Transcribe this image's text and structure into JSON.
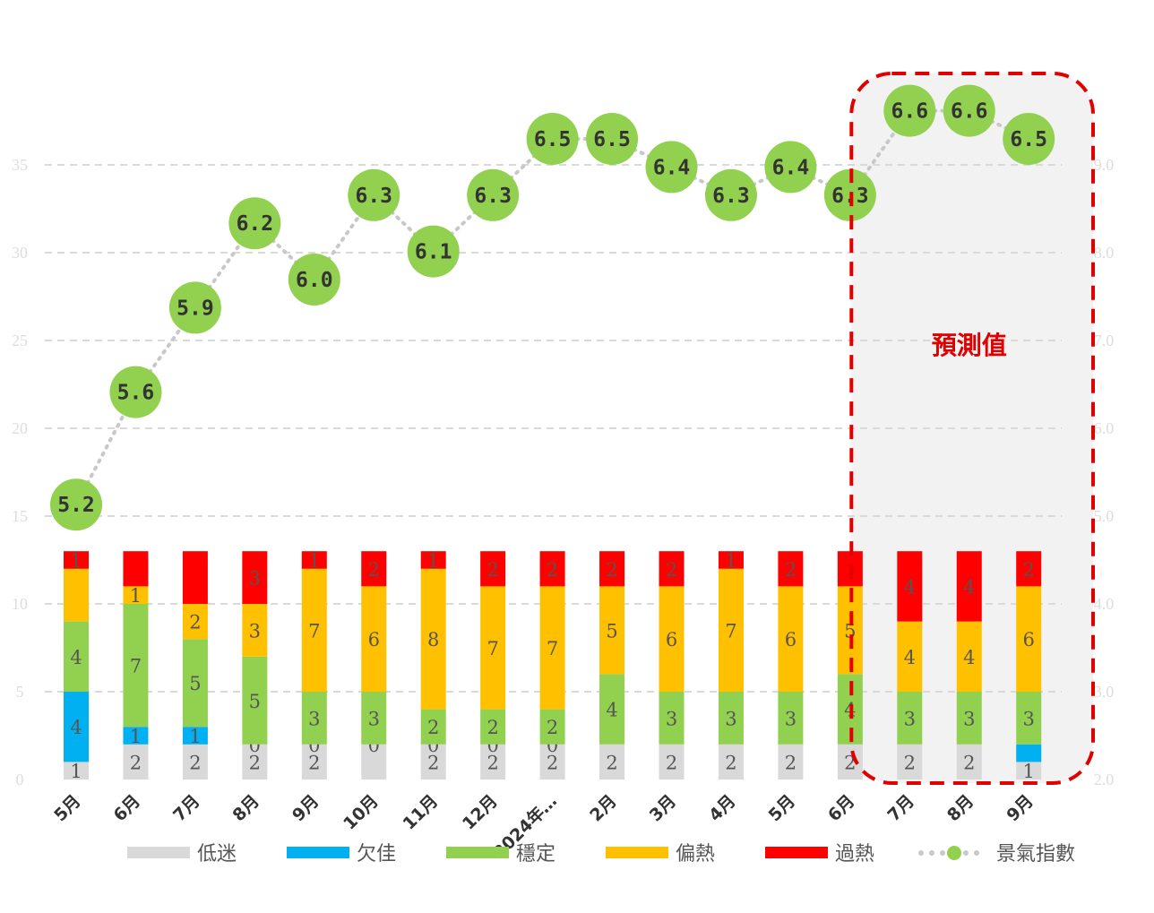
{
  "chart_data": {
    "type": "bar",
    "stacked": true,
    "categories": [
      "5月",
      "6月",
      "7月",
      "8月",
      "9月",
      "10月",
      "11月",
      "12月",
      "2024年…",
      "2月",
      "3月",
      "4月",
      "5月",
      "6月",
      "7月",
      "8月",
      "9月"
    ],
    "series": [
      {
        "name": "低迷",
        "color": "#d9d9d9",
        "values": [
          1,
          2,
          2,
          2,
          2,
          2,
          2,
          2,
          2,
          2,
          2,
          2,
          2,
          2,
          2,
          2,
          1
        ],
        "labels": [
          "1",
          "2",
          "2",
          "2",
          "2",
          "",
          "2",
          "2",
          "2",
          "2",
          "2",
          "2",
          "2",
          "2",
          "2",
          "2",
          "1"
        ]
      },
      {
        "name": "欠佳",
        "color": "#00b0f0",
        "values": [
          4,
          1,
          1,
          0,
          0,
          0,
          0,
          0,
          0,
          0,
          0,
          0,
          0,
          0,
          0,
          0,
          1
        ],
        "labels": [
          "4",
          "1",
          "1",
          "0",
          "0",
          "0",
          "0",
          "0",
          "0",
          "",
          "",
          "",
          "",
          "",
          "",
          "",
          ""
        ]
      },
      {
        "name": "穩定",
        "color": "#92d050",
        "values": [
          4,
          7,
          5,
          5,
          3,
          3,
          2,
          2,
          2,
          4,
          3,
          3,
          3,
          4,
          3,
          3,
          3
        ],
        "labels": [
          "4",
          "7",
          "5",
          "5",
          "3",
          "3",
          "2",
          "2",
          "2",
          "4",
          "3",
          "3",
          "3",
          "4",
          "3",
          "3",
          "3"
        ]
      },
      {
        "name": "偏熱",
        "color": "#ffc000",
        "values": [
          3,
          1,
          2,
          3,
          7,
          6,
          8,
          7,
          7,
          5,
          6,
          7,
          6,
          5,
          4,
          4,
          6
        ],
        "labels": [
          "",
          "1",
          "2",
          "3",
          "7",
          "6",
          "8",
          "7",
          "7",
          "5",
          "6",
          "7",
          "6",
          "5",
          "4",
          "4",
          "6"
        ]
      },
      {
        "name": "過熱",
        "color": "#ff0000",
        "values": [
          1,
          2,
          3,
          3,
          1,
          2,
          1,
          2,
          2,
          2,
          2,
          1,
          2,
          2,
          4,
          4,
          2
        ],
        "labels": [
          "1",
          "",
          "",
          "3",
          "1",
          "2",
          "1",
          "2",
          "2",
          "2",
          "2",
          "1",
          "2",
          "",
          "4",
          "4",
          "2"
        ]
      }
    ],
    "line_series": {
      "name": "景氣指數",
      "color": "#92d050",
      "values": [
        5.2,
        5.6,
        5.9,
        6.2,
        6.0,
        6.3,
        6.1,
        6.3,
        6.5,
        6.5,
        6.4,
        6.3,
        6.4,
        6.3,
        6.6,
        6.6,
        6.5
      ],
      "labels": [
        "5.2",
        "5.6",
        "5.9",
        "6.2",
        "6.0",
        "6.3",
        "6.1",
        "6.3",
        "6.5",
        "6.5",
        "6.4",
        "6.3",
        "6.4",
        "6.3",
        "6.6",
        "6.6",
        "6.5"
      ]
    },
    "yticks_left": [
      "0",
      "5",
      "10",
      "15",
      "20",
      "25",
      "30",
      "35"
    ],
    "yticks_right": [
      "2.0",
      "3.0",
      "4.0",
      "5.0",
      "6.0",
      "7.0",
      "8.0",
      "9.0"
    ],
    "ylim": [
      0,
      35
    ],
    "forecast_start_index": 14,
    "forecast_label": "預測值",
    "legend_position": "bottom",
    "grid": true
  }
}
